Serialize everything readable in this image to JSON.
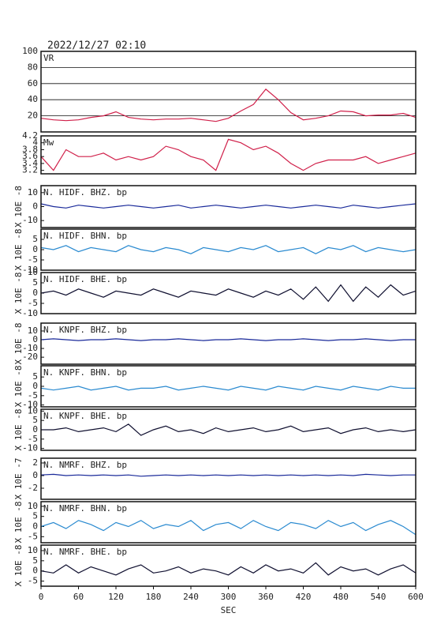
{
  "title": "2022/12/27 02:10",
  "chart_data": [
    {
      "type": "line",
      "name": "VR",
      "color": "#d0204a",
      "grid": true,
      "xlim": [
        0,
        600
      ],
      "ylim": [
        0,
        100
      ],
      "yticks": [
        20,
        40,
        60,
        80,
        100
      ],
      "x": [
        0,
        20,
        40,
        60,
        80,
        100,
        120,
        140,
        160,
        180,
        200,
        220,
        240,
        260,
        280,
        300,
        320,
        340,
        360,
        380,
        400,
        420,
        440,
        460,
        480,
        500,
        520,
        540,
        560,
        580,
        600
      ],
      "values": [
        17,
        15,
        14,
        15,
        18,
        20,
        25,
        18,
        16,
        15,
        16,
        16,
        17,
        15,
        13,
        17,
        26,
        34,
        53,
        40,
        24,
        15,
        17,
        20,
        26,
        25,
        20,
        21,
        21,
        23,
        18
      ]
    },
    {
      "type": "line",
      "name": "Mw",
      "color": "#d0204a",
      "xlim": [
        0,
        600
      ],
      "ylim": [
        3.1,
        4.2
      ],
      "yticks": [
        3.2,
        3.4,
        3.6,
        3.8,
        4,
        4.2
      ],
      "x": [
        0,
        20,
        40,
        60,
        80,
        100,
        120,
        140,
        160,
        180,
        200,
        220,
        240,
        260,
        280,
        300,
        320,
        340,
        360,
        380,
        400,
        420,
        440,
        460,
        480,
        500,
        520,
        540,
        560,
        580,
        600
      ],
      "values": [
        3.6,
        3.2,
        3.8,
        3.6,
        3.6,
        3.7,
        3.5,
        3.6,
        3.5,
        3.6,
        3.9,
        3.8,
        3.6,
        3.5,
        3.2,
        4.1,
        4.0,
        3.8,
        3.9,
        3.7,
        3.4,
        3.2,
        3.4,
        3.5,
        3.5,
        3.5,
        3.6,
        3.4,
        3.5,
        3.6,
        3.7
      ]
    },
    {
      "type": "line",
      "name": "N. HIDF. BHZ. bp",
      "ylabel": "X 10E -8",
      "color": "#1a2a9a",
      "xlim": [
        0,
        600
      ],
      "ylim": [
        -15,
        15
      ],
      "yticks": [
        -10,
        0,
        10
      ],
      "x": [
        0,
        20,
        40,
        60,
        80,
        100,
        120,
        140,
        160,
        180,
        200,
        220,
        240,
        260,
        280,
        300,
        320,
        340,
        360,
        380,
        400,
        420,
        440,
        460,
        480,
        500,
        520,
        540,
        560,
        580,
        600
      ],
      "values": [
        2,
        0,
        -1,
        1,
        0,
        -1,
        0,
        1,
        0,
        -1,
        0,
        1,
        -1,
        0,
        1,
        0,
        -1,
        0,
        1,
        0,
        -1,
        0,
        1,
        0,
        -1,
        1,
        0,
        -1,
        0,
        1,
        2
      ]
    },
    {
      "type": "line",
      "name": "N. HIDF. BHN. bp",
      "ylabel": "X 10E -8",
      "color": "#2a8ad0",
      "xlim": [
        0,
        600
      ],
      "ylim": [
        -10,
        10
      ],
      "yticks": [
        -10,
        -5,
        0,
        5
      ],
      "x": [
        0,
        20,
        40,
        60,
        80,
        100,
        120,
        140,
        160,
        180,
        200,
        220,
        240,
        260,
        280,
        300,
        320,
        340,
        360,
        380,
        400,
        420,
        440,
        460,
        480,
        500,
        520,
        540,
        560,
        580,
        600
      ],
      "values": [
        1,
        0,
        2,
        -1,
        1,
        0,
        -1,
        2,
        0,
        -1,
        1,
        0,
        -2,
        1,
        0,
        -1,
        1,
        0,
        2,
        -1,
        0,
        1,
        -2,
        1,
        0,
        2,
        -1,
        1,
        0,
        -1,
        0
      ]
    },
    {
      "type": "line",
      "name": "N. HIDF. BHE. bp",
      "ylabel": "X 10E -8",
      "color": "#101030",
      "xlim": [
        0,
        600
      ],
      "ylim": [
        -10,
        10
      ],
      "yticks": [
        -10,
        -5,
        0,
        5,
        10
      ],
      "x": [
        0,
        20,
        40,
        60,
        80,
        100,
        120,
        140,
        160,
        180,
        200,
        220,
        240,
        260,
        280,
        300,
        320,
        340,
        360,
        380,
        400,
        420,
        440,
        460,
        480,
        500,
        520,
        540,
        560,
        580,
        600
      ],
      "values": [
        0,
        1,
        -1,
        2,
        0,
        -2,
        1,
        0,
        -1,
        2,
        0,
        -2,
        1,
        0,
        -1,
        2,
        0,
        -2,
        1,
        -1,
        2,
        -3,
        3,
        -4,
        4,
        -4,
        3,
        -2,
        4,
        -1,
        1
      ]
    },
    {
      "type": "line",
      "name": "N. KNPF. BHZ. bp",
      "ylabel": "X 10E -8",
      "color": "#1a2a9a",
      "xlim": [
        0,
        600
      ],
      "ylim": [
        -28,
        19
      ],
      "yticks": [
        -20,
        -10,
        0,
        10
      ],
      "x": [
        0,
        20,
        40,
        60,
        80,
        100,
        120,
        140,
        160,
        180,
        200,
        220,
        240,
        260,
        280,
        300,
        320,
        340,
        360,
        380,
        400,
        420,
        440,
        460,
        480,
        500,
        520,
        540,
        560,
        580,
        600
      ],
      "values": [
        0,
        1,
        0,
        -1,
        0,
        0,
        1,
        0,
        -1,
        0,
        0,
        1,
        0,
        -1,
        0,
        0,
        1,
        0,
        -1,
        0,
        0,
        1,
        0,
        -1,
        0,
        0,
        1,
        0,
        -1,
        0,
        0
      ]
    },
    {
      "type": "line",
      "name": "N. KNPF. BHN. bp",
      "ylabel": "X 10E -8",
      "color": "#2a8ad0",
      "xlim": [
        0,
        600
      ],
      "ylim": [
        -11,
        11
      ],
      "yticks": [
        -10,
        -5,
        0,
        5
      ],
      "x": [
        0,
        20,
        40,
        60,
        80,
        100,
        120,
        140,
        160,
        180,
        200,
        220,
        240,
        260,
        280,
        300,
        320,
        340,
        360,
        380,
        400,
        420,
        440,
        460,
        480,
        500,
        520,
        540,
        560,
        580,
        600
      ],
      "values": [
        -1,
        -2,
        -1,
        0,
        -2,
        -1,
        0,
        -2,
        -1,
        -1,
        0,
        -2,
        -1,
        0,
        -1,
        -2,
        0,
        -1,
        -2,
        0,
        -1,
        -2,
        0,
        -1,
        -2,
        0,
        -1,
        -2,
        0,
        -1,
        -1
      ]
    },
    {
      "type": "line",
      "name": "N. KNPF. BHE. bp",
      "ylabel": "X 10E -8",
      "color": "#101030",
      "xlim": [
        0,
        600
      ],
      "ylim": [
        -11,
        11
      ],
      "yticks": [
        -10,
        -5,
        0,
        5,
        10
      ],
      "x": [
        0,
        20,
        40,
        60,
        80,
        100,
        120,
        140,
        160,
        180,
        200,
        220,
        240,
        260,
        280,
        300,
        320,
        340,
        360,
        380,
        400,
        420,
        440,
        460,
        480,
        500,
        520,
        540,
        560,
        580,
        600
      ],
      "values": [
        0,
        0,
        1,
        -1,
        0,
        1,
        -1,
        3,
        -3,
        0,
        2,
        -1,
        0,
        -2,
        1,
        -1,
        0,
        1,
        -1,
        0,
        2,
        -1,
        0,
        1,
        -2,
        0,
        1,
        -1,
        0,
        -1,
        0
      ]
    },
    {
      "type": "line",
      "name": "N. NMRF. BHZ. bp",
      "ylabel": "X 10E -7",
      "color": "#1a2a9a",
      "xlim": [
        0,
        600
      ],
      "ylim": [
        -3.75,
        2.75
      ],
      "yticks": [
        -2,
        0,
        2
      ],
      "x": [
        0,
        20,
        40,
        60,
        80,
        100,
        120,
        140,
        160,
        180,
        200,
        220,
        240,
        260,
        280,
        300,
        320,
        340,
        360,
        380,
        400,
        420,
        440,
        460,
        480,
        500,
        520,
        540,
        560,
        580,
        600
      ],
      "values": [
        0.1,
        0.2,
        0,
        0.1,
        0,
        0.1,
        0,
        0.1,
        -0.1,
        0,
        0.1,
        0,
        0.1,
        0,
        0.1,
        0,
        0.1,
        0,
        0.1,
        0,
        0.1,
        0,
        0.1,
        0,
        0.1,
        0,
        0.2,
        0.1,
        0,
        0.1,
        0.1
      ]
    },
    {
      "type": "line",
      "name": "N. NMRF. BHN. bp",
      "ylabel": "X 10E -8",
      "color": "#2a8ad0",
      "xlim": [
        0,
        600
      ],
      "ylim": [
        -8,
        12.3
      ],
      "yticks": [
        -5,
        0,
        5,
        10
      ],
      "x": [
        0,
        20,
        40,
        60,
        80,
        100,
        120,
        140,
        160,
        180,
        200,
        220,
        240,
        260,
        280,
        300,
        320,
        340,
        360,
        380,
        400,
        420,
        440,
        460,
        480,
        500,
        520,
        540,
        560,
        580,
        600
      ],
      "values": [
        0,
        2,
        -1,
        3,
        1,
        -2,
        2,
        0,
        3,
        -1,
        1,
        0,
        3,
        -2,
        1,
        2,
        -1,
        3,
        0,
        -2,
        2,
        1,
        -1,
        3,
        0,
        2,
        -2,
        1,
        3,
        0,
        -4
      ]
    },
    {
      "type": "line",
      "name": "N. NMRF. BHE. bp",
      "ylabel": "X 10E -8",
      "xlabel": "SEC",
      "color": "#101030",
      "xlim": [
        0,
        600
      ],
      "ylim": [
        -7.5,
        12.7
      ],
      "yticks": [
        -5,
        0,
        5,
        10
      ],
      "xticks": [
        0,
        60,
        120,
        180,
        240,
        300,
        360,
        420,
        480,
        540,
        600
      ],
      "x": [
        0,
        20,
        40,
        60,
        80,
        100,
        120,
        140,
        160,
        180,
        200,
        220,
        240,
        260,
        280,
        300,
        320,
        340,
        360,
        380,
        400,
        420,
        440,
        460,
        480,
        500,
        520,
        540,
        560,
        580,
        600
      ],
      "values": [
        0,
        -1,
        3,
        -1,
        2,
        0,
        -2,
        1,
        3,
        -1,
        0,
        2,
        -1,
        1,
        0,
        -2,
        2,
        -1,
        3,
        0,
        1,
        -1,
        4,
        -2,
        2,
        0,
        1,
        -2,
        1,
        3,
        -1
      ]
    }
  ]
}
